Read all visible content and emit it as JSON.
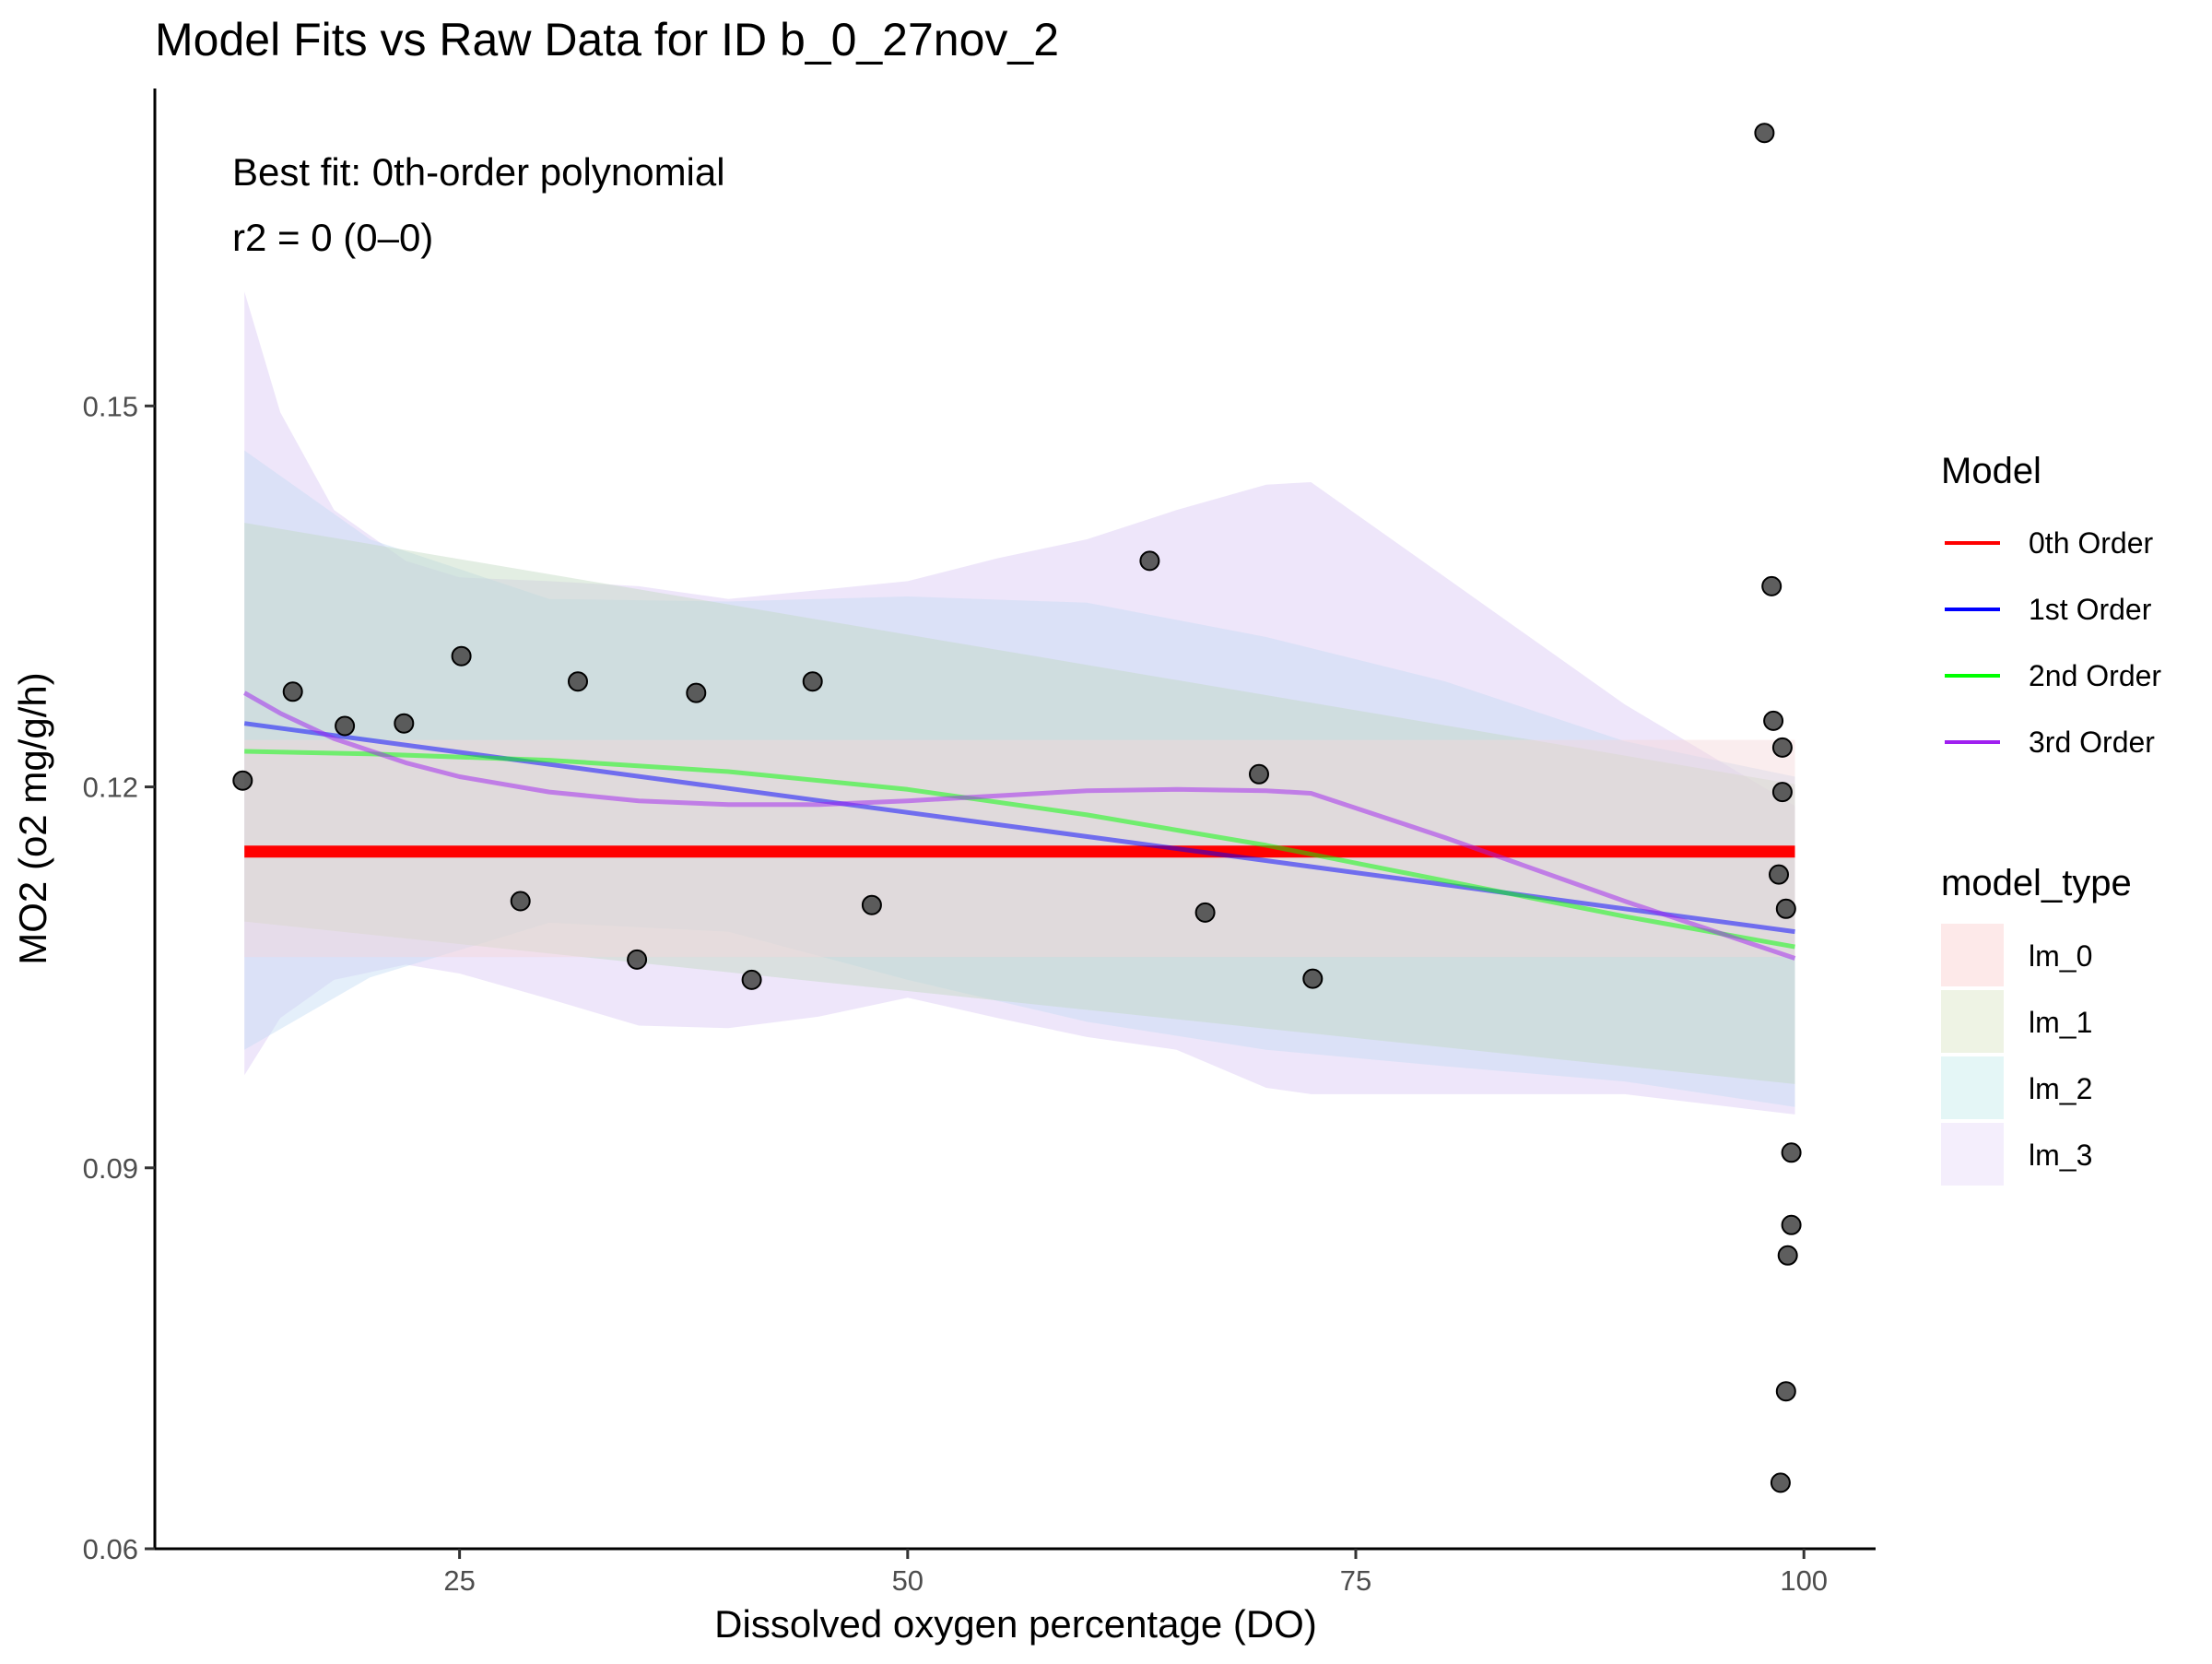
{
  "chart_data": {
    "type": "scatter",
    "title": "Model Fits vs Raw Data for ID b_0_27nov_2",
    "xlabel": "Dissolved oxygen percentage (DO)",
    "ylabel": "MO2 (o2 mg/g/h)",
    "xlim": [
      8,
      104
    ],
    "ylim": [
      0.06,
      0.175
    ],
    "xticks": [
      25,
      50,
      75,
      100
    ],
    "yticks": [
      0.06,
      0.09,
      0.12,
      0.15
    ],
    "xtick_labels": [
      "25",
      "50",
      "75",
      "100"
    ],
    "ytick_labels": [
      "0.06",
      "0.09",
      "0.12",
      "0.15"
    ],
    "grid": false,
    "legend_position": "right",
    "annotations": [
      "Best fit: 0th-order polynomial",
      "r2 = 0 (0–0)"
    ],
    "points": [
      {
        "x": 12.9,
        "y": 0.1205
      },
      {
        "x": 15.7,
        "y": 0.1275
      },
      {
        "x": 18.6,
        "y": 0.1248
      },
      {
        "x": 21.9,
        "y": 0.125
      },
      {
        "x": 25.1,
        "y": 0.1303
      },
      {
        "x": 28.4,
        "y": 0.111
      },
      {
        "x": 31.6,
        "y": 0.1283
      },
      {
        "x": 34.9,
        "y": 0.1064
      },
      {
        "x": 38.2,
        "y": 0.1274
      },
      {
        "x": 41.3,
        "y": 0.1048
      },
      {
        "x": 44.7,
        "y": 0.1283
      },
      {
        "x": 48.0,
        "y": 0.1107
      },
      {
        "x": 63.5,
        "y": 0.1378
      },
      {
        "x": 66.6,
        "y": 0.1101
      },
      {
        "x": 69.6,
        "y": 0.121
      },
      {
        "x": 72.6,
        "y": 0.1049
      },
      {
        "x": 97.8,
        "y": 0.1715
      },
      {
        "x": 98.2,
        "y": 0.1358
      },
      {
        "x": 98.3,
        "y": 0.1252
      },
      {
        "x": 98.6,
        "y": 0.1131
      },
      {
        "x": 98.8,
        "y": 0.1231
      },
      {
        "x": 98.8,
        "y": 0.1196
      },
      {
        "x": 99.0,
        "y": 0.1104
      },
      {
        "x": 99.3,
        "y": 0.0912
      },
      {
        "x": 99.3,
        "y": 0.0855
      },
      {
        "x": 99.1,
        "y": 0.0831
      },
      {
        "x": 99.0,
        "y": 0.0724
      },
      {
        "x": 98.7,
        "y": 0.0652
      }
    ],
    "series": [
      {
        "name": "0th Order",
        "color": "#ff0000",
        "x": [
          13,
          99.5
        ],
        "y": [
          0.1149,
          0.1149
        ]
      },
      {
        "name": "1st Order",
        "color": "#0000ff",
        "x": [
          13,
          99.5
        ],
        "y": [
          0.125,
          0.1086
        ]
      },
      {
        "name": "2nd Order",
        "color": "#00ff00",
        "x": [
          13,
          20,
          30,
          40,
          50,
          60,
          70,
          80,
          90,
          99.5
        ],
        "y": [
          0.1228,
          0.1226,
          0.1221,
          0.1212,
          0.1198,
          0.1178,
          0.1154,
          0.1126,
          0.1098,
          0.1074
        ]
      },
      {
        "name": "3rd Order",
        "color": "#a020f0",
        "x": [
          13,
          15,
          18,
          22,
          25,
          30,
          35,
          40,
          45,
          50,
          55,
          60,
          65,
          70,
          72.5,
          80,
          90,
          99.5
        ],
        "y": [
          0.1274,
          0.1258,
          0.1238,
          0.1219,
          0.1208,
          0.1196,
          0.1189,
          0.1186,
          0.1186,
          0.1189,
          0.1193,
          0.1197,
          0.1198,
          0.1197,
          0.1195,
          0.116,
          0.111,
          0.1065
        ]
      }
    ],
    "ribbons": [
      {
        "name": "lm_3",
        "color": "#d9c8f5",
        "x": [
          13,
          15,
          18,
          22,
          25,
          30,
          35,
          40,
          45,
          50,
          55,
          60,
          65,
          70,
          72.5,
          80,
          90,
          99.5
        ],
        "upper": [
          0.159,
          0.1495,
          0.1418,
          0.1378,
          0.1365,
          0.1362,
          0.1358,
          0.1348,
          0.1355,
          0.1362,
          0.138,
          0.1395,
          0.1418,
          0.1438,
          0.144,
          0.1365,
          0.1265,
          0.1185
        ],
        "lower": [
          0.0973,
          0.1018,
          0.1048,
          0.106,
          0.1053,
          0.1033,
          0.1012,
          0.101,
          0.1019,
          0.1034,
          0.1018,
          0.1003,
          0.0993,
          0.0963,
          0.0958,
          0.0958,
          0.0958,
          0.0942
        ]
      },
      {
        "name": "lm_2",
        "color": "#c4dcf5",
        "x": [
          13,
          20,
          30,
          40,
          50,
          60,
          70,
          80,
          90,
          99.5
        ],
        "upper": [
          0.1465,
          0.1395,
          0.1348,
          0.1346,
          0.135,
          0.1345,
          0.1318,
          0.1283,
          0.1236,
          0.1208
        ],
        "lower": [
          0.0993,
          0.105,
          0.1093,
          0.1086,
          0.1048,
          0.1015,
          0.0993,
          0.098,
          0.0968,
          0.0948
        ]
      },
      {
        "name": "lm_1",
        "color": "#c2d9c2",
        "x": [
          13,
          99.5
        ],
        "upper": [
          0.1408,
          0.1202
        ],
        "lower": [
          0.1094,
          0.0966
        ]
      },
      {
        "name": "lm_0",
        "color": "#f5d6d9",
        "x": [
          13,
          99.5
        ],
        "upper": [
          0.1237,
          0.1237
        ],
        "lower": [
          0.1066,
          0.1066
        ]
      }
    ],
    "legends": [
      {
        "title": "Model",
        "entries": [
          "0th Order",
          "1st Order",
          "2nd Order",
          "3rd Order"
        ],
        "colors": [
          "#ff0000",
          "#0000ff",
          "#00ff00",
          "#a020f0"
        ]
      },
      {
        "title": "model_type",
        "entries": [
          "lm_0",
          "lm_1",
          "lm_2",
          "lm_3"
        ],
        "colors": [
          "#fde9e9",
          "#eef3e4",
          "#e4f6f6",
          "#f4eefc"
        ]
      }
    ]
  }
}
